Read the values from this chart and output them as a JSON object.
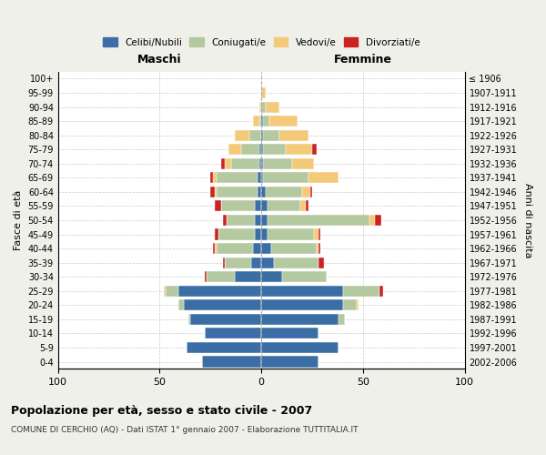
{
  "age_groups": [
    "0-4",
    "5-9",
    "10-14",
    "15-19",
    "20-24",
    "25-29",
    "30-34",
    "35-39",
    "40-44",
    "45-49",
    "50-54",
    "55-59",
    "60-64",
    "65-69",
    "70-74",
    "75-79",
    "80-84",
    "85-89",
    "90-94",
    "95-99",
    "100+"
  ],
  "birth_years": [
    "2002-2006",
    "1997-2001",
    "1992-1996",
    "1987-1991",
    "1982-1986",
    "1977-1981",
    "1972-1976",
    "1967-1971",
    "1962-1966",
    "1957-1961",
    "1952-1956",
    "1947-1951",
    "1942-1946",
    "1937-1941",
    "1932-1936",
    "1927-1931",
    "1922-1926",
    "1917-1921",
    "1912-1916",
    "1907-1911",
    "≤ 1906"
  ],
  "colors": {
    "celibi": "#3a6ea5",
    "coniugati": "#b5c9a0",
    "vedovi": "#f5c97a",
    "divorziati": "#cc2222"
  },
  "male": {
    "celibi": [
      29,
      37,
      28,
      35,
      38,
      41,
      13,
      5,
      4,
      3,
      3,
      3,
      2,
      2,
      1,
      1,
      0,
      0,
      0,
      0,
      0
    ],
    "coniugati": [
      0,
      0,
      0,
      1,
      3,
      6,
      14,
      13,
      18,
      18,
      14,
      17,
      20,
      20,
      14,
      9,
      6,
      1,
      0,
      0,
      0
    ],
    "vedovi": [
      0,
      0,
      0,
      0,
      0,
      1,
      0,
      0,
      1,
      0,
      0,
      0,
      1,
      2,
      3,
      6,
      7,
      3,
      1,
      0,
      0
    ],
    "divorziati": [
      0,
      0,
      0,
      0,
      0,
      0,
      1,
      1,
      1,
      2,
      2,
      3,
      2,
      1,
      2,
      0,
      0,
      0,
      0,
      0,
      0
    ]
  },
  "female": {
    "celibi": [
      28,
      38,
      28,
      38,
      40,
      40,
      10,
      6,
      5,
      3,
      3,
      3,
      2,
      1,
      1,
      1,
      1,
      1,
      0,
      0,
      0
    ],
    "coniugati": [
      0,
      0,
      0,
      3,
      7,
      18,
      22,
      22,
      22,
      23,
      50,
      16,
      18,
      22,
      14,
      11,
      8,
      3,
      2,
      0,
      0
    ],
    "vedovi": [
      0,
      0,
      0,
      0,
      1,
      0,
      0,
      0,
      1,
      2,
      3,
      3,
      4,
      15,
      11,
      13,
      14,
      14,
      7,
      2,
      0
    ],
    "divorziati": [
      0,
      0,
      0,
      0,
      0,
      2,
      0,
      3,
      1,
      1,
      3,
      1,
      1,
      0,
      0,
      2,
      0,
      0,
      0,
      0,
      0
    ]
  },
  "xlim": 100,
  "title": "Popolazione per età, sesso e stato civile - 2007",
  "subtitle": "COMUNE DI CERCHIO (AQ) - Dati ISTAT 1° gennaio 2007 - Elaborazione TUTTITALIA.IT",
  "ylabel_left": "Fasce di età",
  "ylabel_right": "Anni di nascita",
  "xlabel_maschi": "Maschi",
  "xlabel_femmine": "Femmine",
  "legend_labels": [
    "Celibi/Nubili",
    "Coniugati/e",
    "Vedovi/e",
    "Divorziati/e"
  ],
  "bg_color": "#f0f0eb",
  "bar_bg_color": "#ffffff"
}
